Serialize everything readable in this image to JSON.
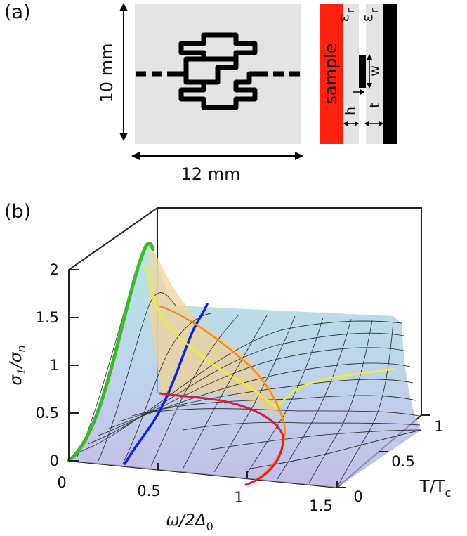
{
  "figure": {
    "panel_a": {
      "label": "(a)",
      "height_label": "10 mm",
      "width_label": "12 mm",
      "sample_label": "sample",
      "eps_label_1": "ε",
      "eps_sub_1": "r",
      "eps_label_2": "ε",
      "eps_sub_2": "r",
      "w_label": "w",
      "h_label": "h",
      "t_label": "t",
      "colors": {
        "substrate": "#e4e4e4",
        "sample": "#ff2211",
        "metal": "#000000"
      }
    },
    "panel_b": {
      "label": "(b)",
      "z_axis_main": "σ",
      "z_axis_sub1": "1",
      "z_axis_mid": "/σ",
      "z_axis_sub2": "n",
      "x_axis_main": "ω/2Δ",
      "x_axis_sub": "0",
      "y_axis_main": "T/T",
      "y_axis_sub": "c",
      "z_ticks": [
        "0",
        "0.5",
        "1",
        "1.5",
        "2"
      ],
      "x_ticks": [
        "0",
        "0.5",
        "1",
        "1.5"
      ],
      "y_ticks": [
        "0",
        "0.5",
        "1"
      ],
      "colors": {
        "green": "#3cb82a",
        "blue": "#1020e0",
        "yellow": "#f2f02a",
        "red": "#e01c2c",
        "orange": "#f08a2a"
      }
    }
  },
  "chart_data": {
    "type": "surface",
    "x_label": "ω/2Δ0",
    "y_label": "T/Tc",
    "z_label": "σ1/σn",
    "xlim": [
      0,
      1.5
    ],
    "ylim": [
      0,
      1
    ],
    "zlim": [
      0,
      2
    ],
    "x_ticks": [
      0,
      0.5,
      1,
      1.5
    ],
    "y_ticks": [
      0,
      0.5,
      1
    ],
    "z_ticks": [
      0,
      0.5,
      1,
      1.5,
      2
    ]
  }
}
